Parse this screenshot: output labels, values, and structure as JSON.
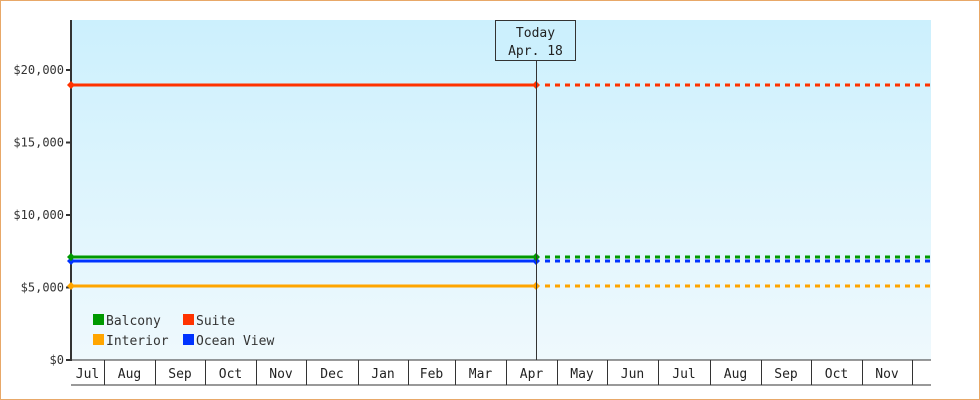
{
  "chart_data": {
    "type": "line",
    "title": "",
    "xlabel": "",
    "ylabel": "",
    "ylim": [
      0,
      23500
    ],
    "y_ticks": [
      {
        "value": 0,
        "label": "$0"
      },
      {
        "value": 5000,
        "label": "$5,000"
      },
      {
        "value": 10000,
        "label": "$10,000"
      },
      {
        "value": 15000,
        "label": "$15,000"
      },
      {
        "value": 20000,
        "label": "$20,000"
      }
    ],
    "x_categories": [
      "Jul",
      "Aug",
      "Sep",
      "Oct",
      "Nov",
      "Dec",
      "Jan",
      "Feb",
      "Mar",
      "Apr",
      "May",
      "Jun",
      "Jul",
      "Aug",
      "Sep",
      "Oct",
      "Nov"
    ],
    "today_marker": {
      "line1": "Today",
      "line2": "Apr. 18"
    },
    "grid": false,
    "legend_position": "bottom-left inside plot",
    "series": [
      {
        "name": "Balcony",
        "color": "#009900",
        "value": 7100,
        "history": "solid",
        "forecast": "dotted"
      },
      {
        "name": "Suite",
        "color": "#ff3300",
        "value": 19000,
        "history": "solid",
        "forecast": "dotted"
      },
      {
        "name": "Interior",
        "color": "#ffa500",
        "value": 5100,
        "history": "solid",
        "forecast": "dotted"
      },
      {
        "name": "Ocean View",
        "color": "#0033ff",
        "value": 6900,
        "history": "solid",
        "forecast": "dotted"
      }
    ]
  },
  "legend": [
    {
      "label": "Balcony",
      "color": "#009900"
    },
    {
      "label": "Suite",
      "color": "#ff3300"
    },
    {
      "label": "Interior",
      "color": "#ffa500"
    },
    {
      "label": "Ocean View",
      "color": "#0033ff"
    }
  ],
  "colors": {
    "plot_bg_top": "#ccf0fd",
    "plot_bg_bottom": "#eff9fd",
    "axis": "#333333",
    "frame_border": "#e8a868"
  }
}
